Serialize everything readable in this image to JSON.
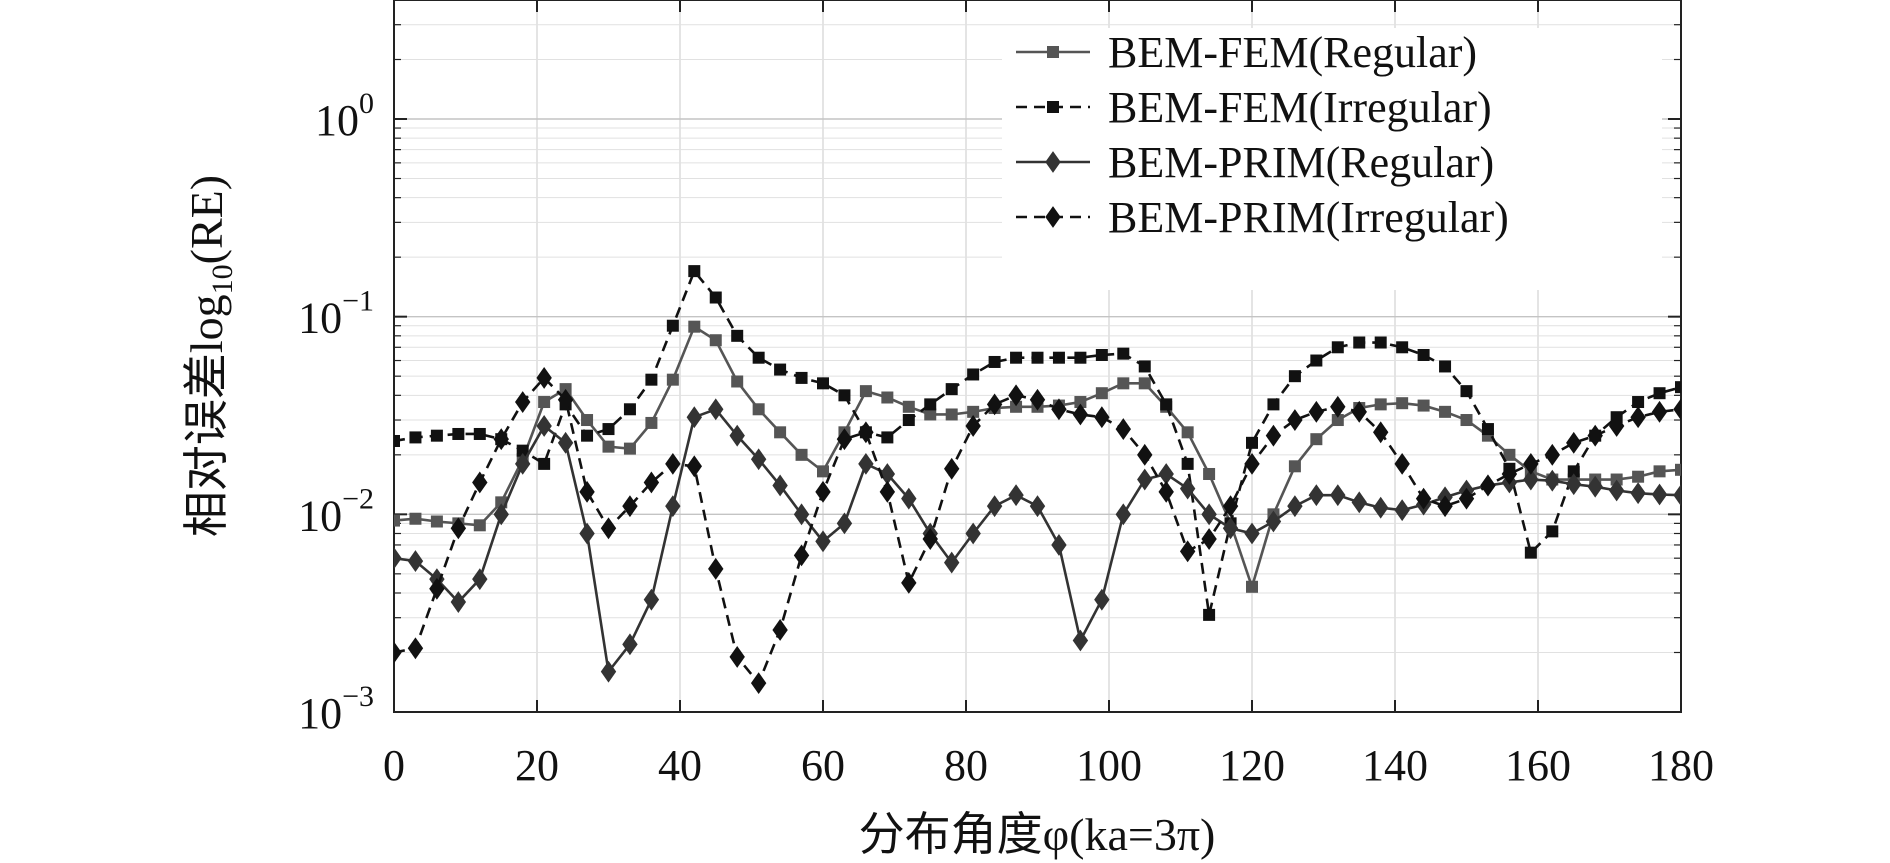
{
  "chart_data": {
    "type": "line",
    "title": "",
    "xlabel": "分布角度φ(ka=3π)",
    "ylabel": "相对误差log10(RE)",
    "xlim": [
      0,
      180
    ],
    "ylim": [
      0.001,
      4
    ],
    "y_scale": "log",
    "grid": true,
    "legend_position": "top-right",
    "x_ticks": [
      "0",
      "20",
      "40",
      "60",
      "80",
      "100",
      "120",
      "140",
      "160",
      "180"
    ],
    "y_ticks": [
      {
        "value": 1,
        "base": "10",
        "exp": "0"
      },
      {
        "value": 0.1,
        "base": "10",
        "exp": "−1"
      },
      {
        "value": 0.01,
        "base": "10",
        "exp": "−2"
      },
      {
        "value": 0.001,
        "base": "10",
        "exp": "−3"
      }
    ],
    "x": [
      0,
      3,
      6,
      9,
      12,
      15,
      18,
      21,
      24,
      27,
      30,
      33,
      36,
      39,
      42,
      45,
      48,
      51,
      54,
      57,
      60,
      63,
      66,
      69,
      72,
      75,
      78,
      81,
      84,
      87,
      90,
      93,
      96,
      99,
      102,
      105,
      108,
      111,
      114,
      117,
      120,
      123,
      126,
      129,
      132,
      135,
      138,
      141,
      144,
      147,
      150,
      153,
      156,
      159,
      162,
      165,
      168,
      171,
      174,
      177,
      180
    ],
    "series": [
      {
        "name": "BEM-FEM(Regular)",
        "color": "#555555",
        "line": "solid",
        "marker": "square",
        "values": [
          0.0093,
          0.0095,
          0.0092,
          0.009,
          0.0088,
          0.0115,
          0.019,
          0.037,
          0.043,
          0.03,
          0.022,
          0.0215,
          0.029,
          0.048,
          0.089,
          0.076,
          0.047,
          0.034,
          0.026,
          0.02,
          0.0165,
          0.026,
          0.042,
          0.039,
          0.035,
          0.032,
          0.032,
          0.033,
          0.0345,
          0.035,
          0.035,
          0.0355,
          0.037,
          0.041,
          0.046,
          0.046,
          0.035,
          0.026,
          0.016,
          0.009,
          0.0043,
          0.01,
          0.0175,
          0.024,
          0.03,
          0.0345,
          0.036,
          0.0365,
          0.0355,
          0.033,
          0.03,
          0.025,
          0.02,
          0.0165,
          0.015,
          0.015,
          0.015,
          0.015,
          0.0155,
          0.0165,
          0.0168
        ]
      },
      {
        "name": "BEM-FEM(Irregular)",
        "color": "#111111",
        "line": "dashed",
        "marker": "square",
        "values": [
          0.0235,
          0.0245,
          0.025,
          0.0255,
          0.0255,
          0.024,
          0.021,
          0.018,
          0.036,
          0.025,
          0.027,
          0.034,
          0.048,
          0.09,
          0.17,
          0.125,
          0.08,
          0.062,
          0.054,
          0.049,
          0.046,
          0.04,
          0.026,
          0.0245,
          0.03,
          0.036,
          0.043,
          0.051,
          0.059,
          0.062,
          0.062,
          0.062,
          0.062,
          0.064,
          0.065,
          0.056,
          0.036,
          0.018,
          0.0031,
          0.009,
          0.023,
          0.036,
          0.05,
          0.06,
          0.07,
          0.074,
          0.074,
          0.07,
          0.064,
          0.056,
          0.042,
          0.027,
          0.017,
          0.0064,
          0.0082,
          0.0165,
          0.025,
          0.031,
          0.037,
          0.041,
          0.044
        ]
      },
      {
        "name": "BEM-PRIM(Regular)",
        "color": "#333333",
        "line": "solid",
        "marker": "diamond",
        "values": [
          0.006,
          0.0058,
          0.0047,
          0.0036,
          0.0047,
          0.01,
          0.018,
          0.028,
          0.023,
          0.008,
          0.0016,
          0.0022,
          0.0037,
          0.011,
          0.031,
          0.034,
          0.025,
          0.019,
          0.014,
          0.01,
          0.0073,
          0.009,
          0.018,
          0.016,
          0.012,
          0.008,
          0.0057,
          0.008,
          0.011,
          0.0125,
          0.011,
          0.007,
          0.0023,
          0.0037,
          0.01,
          0.015,
          0.016,
          0.0135,
          0.01,
          0.0085,
          0.008,
          0.0092,
          0.011,
          0.0125,
          0.0125,
          0.0115,
          0.0108,
          0.0105,
          0.0112,
          0.0122,
          0.0132,
          0.014,
          0.0145,
          0.015,
          0.0148,
          0.0142,
          0.0138,
          0.0132,
          0.0128,
          0.0126,
          0.0125
        ]
      },
      {
        "name": "BEM-PRIM(Irregular)",
        "color": "#111111",
        "line": "dashed",
        "marker": "diamond",
        "values": [
          0.002,
          0.0021,
          0.0042,
          0.0085,
          0.0145,
          0.024,
          0.037,
          0.049,
          0.038,
          0.013,
          0.0085,
          0.011,
          0.0145,
          0.018,
          0.0175,
          0.0053,
          0.0019,
          0.0014,
          0.0026,
          0.0062,
          0.013,
          0.024,
          0.026,
          0.013,
          0.0045,
          0.0075,
          0.017,
          0.028,
          0.036,
          0.04,
          0.038,
          0.034,
          0.032,
          0.031,
          0.027,
          0.02,
          0.013,
          0.0065,
          0.0075,
          0.011,
          0.018,
          0.025,
          0.03,
          0.033,
          0.035,
          0.033,
          0.026,
          0.018,
          0.012,
          0.011,
          0.012,
          0.014,
          0.016,
          0.018,
          0.02,
          0.023,
          0.025,
          0.028,
          0.031,
          0.033,
          0.034
        ]
      }
    ]
  }
}
